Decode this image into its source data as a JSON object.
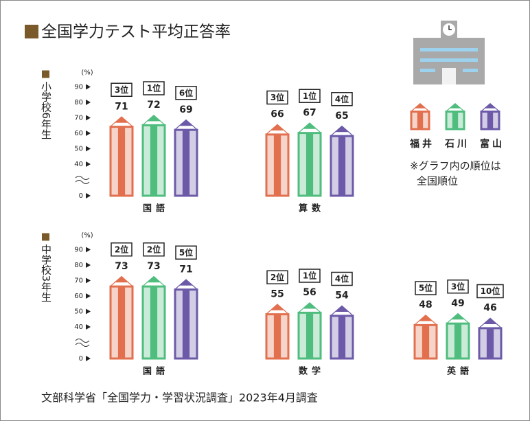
{
  "title": "全国学力テスト平均正答率",
  "note": [
    "※グラフ内の順位は",
    "全国順位"
  ],
  "source": "文部科学省「全国学力・学習状況調査」2023年4月調査",
  "chart_data": [
    {
      "type": "bar",
      "title": "小学校6年生",
      "y_label": "(%)",
      "categories": [
        "国語",
        "算数"
      ],
      "ylim": [
        0,
        90
      ],
      "axis_break": [
        0,
        40
      ],
      "yticks": [
        0,
        40,
        50,
        60,
        70,
        80,
        90
      ],
      "series": [
        {
          "name": "福井",
          "color": "#e2704f",
          "values": [
            71,
            66
          ],
          "ranks": [
            "3位",
            "3位"
          ]
        },
        {
          "name": "石川",
          "color": "#4fbd7e",
          "values": [
            72,
            67
          ],
          "ranks": [
            "1位",
            "1位"
          ]
        },
        {
          "name": "富山",
          "color": "#6c5aa8",
          "values": [
            69,
            65
          ],
          "ranks": [
            "6位",
            "4位"
          ]
        }
      ]
    },
    {
      "type": "bar",
      "title": "中学校3年生",
      "y_label": "(%)",
      "categories": [
        "国語",
        "数学",
        "英語"
      ],
      "ylim": [
        0,
        90
      ],
      "axis_break": [
        0,
        40
      ],
      "yticks": [
        0,
        40,
        50,
        60,
        70,
        80,
        90
      ],
      "series": [
        {
          "color": "#e2704f",
          "values": [
            73,
            55,
            48
          ],
          "ranks": [
            "2位",
            "2位",
            "5位"
          ]
        },
        {
          "color": "#4fbd7e",
          "values": [
            73,
            56,
            49
          ],
          "ranks": [
            "2位",
            "1位",
            "3位"
          ]
        },
        {
          "color": "#6c5aa8",
          "values": [
            71,
            54,
            46
          ],
          "ranks": [
            "5位",
            "4位",
            "10位"
          ]
        }
      ]
    }
  ]
}
